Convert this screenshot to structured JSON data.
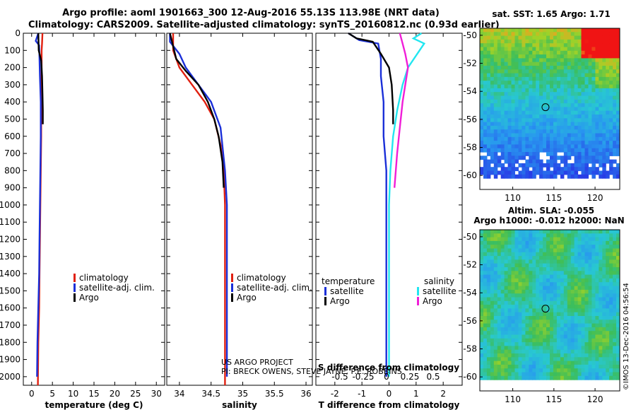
{
  "header": {
    "title_line1": "Argo profile: aoml 1901663_300 12-Aug-2016 55.13S 113.98E (NRT data)",
    "title_line2": "Climatology: CARS2009. Satellite-adjusted climatology: synTS_20160812.nc (0.93d earlier)"
  },
  "colors": {
    "climatology": "#e02010",
    "satellite_adj": "#1a2fd8",
    "argo": "#000000",
    "satellite_salinity": "#22e6f0",
    "argo_salinity": "#f01ed8"
  },
  "credits": {
    "line1": "US ARGO PROJECT",
    "line2": "PI: BRECK OWENS, STEVE JAYNE, P.E. ROBBINS",
    "stamp": "©IMOS 13-Dec-2016 04:56:54"
  },
  "chart_data": [
    {
      "type": "line",
      "xlabel": "temperature (deg C)",
      "ylabel": "",
      "xlim": [
        -2,
        32
      ],
      "ylim": [
        2050,
        0
      ],
      "xticks": [
        0,
        5,
        10,
        15,
        20,
        25,
        30
      ],
      "yticks": [
        0,
        100,
        200,
        300,
        400,
        500,
        600,
        700,
        800,
        900,
        1000,
        1100,
        1200,
        1300,
        1400,
        1500,
        1600,
        1700,
        1800,
        1900,
        2000
      ],
      "legend": [
        "climatology",
        "satellite-adj. clim.",
        "Argo"
      ],
      "series": [
        {
          "name": "climatology",
          "color": "#e02010",
          "x": [
            2.6,
            2.5,
            2.4,
            2.4,
            2.3,
            2.3,
            2.2,
            2.1,
            2.0,
            1.9,
            1.8,
            1.6,
            1.5
          ],
          "y": [
            0,
            60,
            100,
            200,
            400,
            600,
            800,
            1000,
            1200,
            1400,
            1600,
            1800,
            2050
          ]
        },
        {
          "name": "satellite-adj. clim.",
          "color": "#1a2fd8",
          "x": [
            1.6,
            1.0,
            1.8,
            1.9,
            2.0,
            2.2,
            2.2,
            2.1,
            2.0,
            1.9,
            1.8,
            1.6,
            1.4,
            1.3
          ],
          "y": [
            0,
            45,
            70,
            150,
            250,
            400,
            600,
            800,
            1000,
            1200,
            1400,
            1600,
            1800,
            2000
          ]
        },
        {
          "name": "Argo",
          "color": "#000000",
          "x": [
            1.6,
            1.7,
            2.3,
            2.5,
            2.6,
            2.7,
            2.7
          ],
          "y": [
            0,
            100,
            160,
            250,
            350,
            450,
            530
          ]
        }
      ]
    },
    {
      "type": "line",
      "xlabel": "salinity",
      "ylabel": "",
      "xlim": [
        33.8,
        36.1
      ],
      "ylim": [
        2050,
        0
      ],
      "xticks": [
        34,
        34.5,
        35,
        35.5,
        36
      ],
      "legend": [
        "climatology",
        "satellite-adj. clim.",
        "Argo"
      ],
      "series": [
        {
          "name": "climatology",
          "color": "#e02010",
          "x": [
            33.9,
            33.9,
            34.0,
            34.2,
            34.4,
            34.55,
            34.65,
            34.7,
            34.72,
            34.72,
            34.72
          ],
          "y": [
            0,
            100,
            200,
            300,
            400,
            500,
            650,
            800,
            1000,
            1500,
            2050
          ]
        },
        {
          "name": "satellite-adj. clim.",
          "color": "#1a2fd8",
          "x": [
            33.85,
            33.85,
            34.0,
            34.1,
            34.3,
            34.5,
            34.65,
            34.72,
            34.75,
            34.75,
            34.75
          ],
          "y": [
            0,
            50,
            120,
            200,
            300,
            400,
            550,
            800,
            1000,
            1500,
            2000
          ]
        },
        {
          "name": "Argo",
          "color": "#000000",
          "x": [
            33.85,
            33.95,
            34.1,
            34.3,
            34.45,
            34.55,
            34.62,
            34.68,
            34.7
          ],
          "y": [
            0,
            150,
            220,
            300,
            400,
            500,
            600,
            750,
            900
          ]
        }
      ]
    },
    {
      "type": "line",
      "xlabel": "T difference from climatology",
      "ylabel": "",
      "title": "S difference from climatology",
      "xlim": [
        -2.7,
        2.7
      ],
      "ylim": [
        2050,
        0
      ],
      "xticks": [
        -2,
        -1,
        0,
        1,
        2
      ],
      "xticks_top": [
        -0.5,
        -0.25,
        0,
        0.25,
        0.5
      ],
      "xticks_top_labels": [
        "-0.5",
        "-0.25",
        "0",
        "0.25",
        "0.5"
      ],
      "legend_groups": {
        "temperature": [
          "satellite",
          "Argo"
        ],
        "salinity": [
          "satellite",
          "Argo"
        ]
      },
      "series": [
        {
          "name": "satellite",
          "group": "temperature",
          "color": "#1a2fd8",
          "x": [
            -1.5,
            -1.1,
            -0.4,
            -0.3,
            -0.3,
            -0.2,
            -0.2,
            -0.1,
            -0.1,
            -0.1,
            -0.1
          ],
          "y": [
            0,
            40,
            60,
            150,
            250,
            400,
            600,
            800,
            1200,
            1600,
            2000
          ]
        },
        {
          "name": "Argo",
          "group": "temperature",
          "color": "#000000",
          "x": [
            -1.5,
            -1.2,
            -0.6,
            -0.3,
            0.0,
            0.1,
            0.15,
            0.15
          ],
          "y": [
            0,
            30,
            50,
            120,
            200,
            300,
            450,
            530
          ]
        },
        {
          "name": "satellite",
          "group": "salinity",
          "color": "#22e6f0",
          "x": [
            1.2,
            0.9,
            1.3,
            0.7,
            0.5,
            0.3,
            0.15,
            0.05,
            0.0,
            0.0,
            0.0
          ],
          "y": [
            0,
            30,
            60,
            200,
            300,
            450,
            600,
            800,
            1000,
            1500,
            2000
          ]
        },
        {
          "name": "Argo",
          "group": "salinity",
          "color": "#f01ed8",
          "x": [
            0.4,
            0.5,
            0.6,
            0.7,
            0.6,
            0.5,
            0.4,
            0.3,
            0.2
          ],
          "y": [
            0,
            60,
            120,
            200,
            300,
            400,
            550,
            700,
            900
          ]
        }
      ]
    },
    {
      "type": "heatmap",
      "title": "sat. SST: 1.65 Argo: 1.71",
      "xlim": [
        106,
        123
      ],
      "ylim": [
        -61,
        -49.5
      ],
      "xticks": [
        110,
        115,
        120
      ],
      "yticks": [
        -50,
        -52,
        -54,
        -56,
        -58,
        -60
      ],
      "marker": {
        "lon": 113.98,
        "lat": -55.13
      }
    },
    {
      "type": "heatmap",
      "title": "Altim. SLA: -0.055",
      "subtitle": "Argo h1000: -0.012 h2000: NaN",
      "xlim": [
        106,
        123
      ],
      "ylim": [
        -61,
        -49.5
      ],
      "xticks": [
        110,
        115,
        120
      ],
      "yticks": [
        -50,
        -52,
        -54,
        -56,
        -58,
        -60
      ],
      "marker": {
        "lon": 113.98,
        "lat": -55.13
      }
    }
  ]
}
